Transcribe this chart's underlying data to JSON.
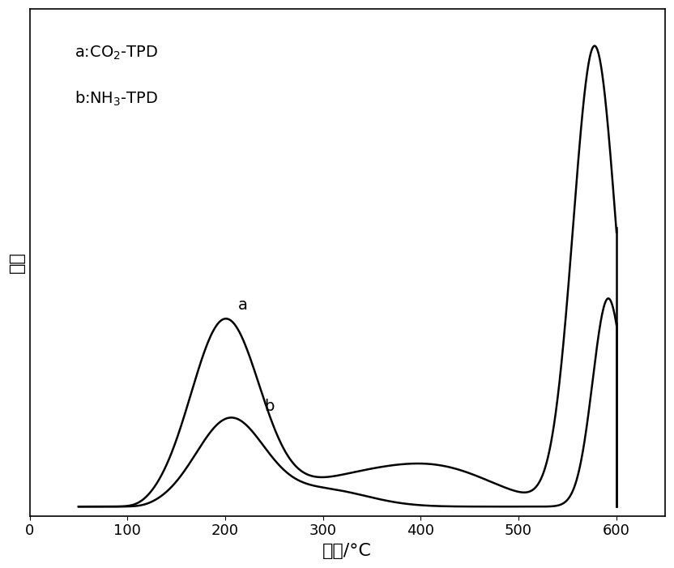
{
  "xlabel": "温度/°C",
  "ylabel": "强度",
  "label_a": "a",
  "label_b": "b",
  "xlim": [
    0,
    650
  ],
  "xticks": [
    0,
    100,
    200,
    300,
    400,
    500,
    600
  ],
  "line_color": "#000000",
  "background_color": "#ffffff",
  "fontsize_axis_label": 16,
  "fontsize_tick": 13,
  "fontsize_legend": 14,
  "fontsize_curve_label": 14
}
